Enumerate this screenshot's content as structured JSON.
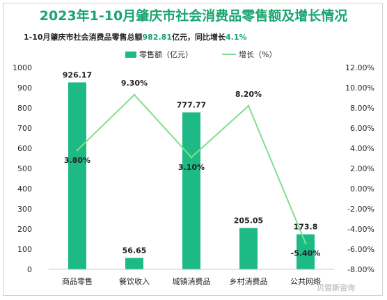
{
  "header": {
    "title": "2023年1-10月肇庆市社会消费品零售额及增长情况",
    "subtitle_prefix": "1-10月肇庆市社会消费品零售总额",
    "subtitle_total": "982.81",
    "subtitle_mid": "亿元，同比增长",
    "subtitle_growth": "4.1%"
  },
  "legend": {
    "bar_label": "零售额（亿元）",
    "line_label": "增长（%）"
  },
  "watermark": "贝哲斯咨询",
  "colors": {
    "title": "#19a56f",
    "bar": "#1dba85",
    "line": "#7de08d",
    "accent": "#19a56f"
  },
  "chart_data": {
    "type": "bar",
    "title": "2023年1-10月肇庆市社会消费品零售额及增长情况",
    "categories": [
      "商品零售",
      "餐饮收入",
      "城镇消费品",
      "乡村消费品",
      "公共网络"
    ],
    "series": [
      {
        "name": "零售额（亿元）",
        "type": "bar",
        "axis": "left",
        "values": [
          926.17,
          56.65,
          777.77,
          205.05,
          173.8
        ],
        "labels": [
          "926.17",
          "56.65",
          "777.77",
          "205.05",
          "173.8"
        ]
      },
      {
        "name": "增长（%）",
        "type": "line",
        "axis": "right",
        "values": [
          3.8,
          9.3,
          3.1,
          8.2,
          -5.4
        ],
        "labels": [
          "3.80%",
          "9.30%",
          "3.10%",
          "8.20%",
          "-5.40%"
        ]
      }
    ],
    "y_left": {
      "range": [
        0,
        1000
      ],
      "ticks": [
        0,
        100,
        200,
        300,
        400,
        500,
        600,
        700,
        800,
        900,
        1000
      ],
      "tick_labels": [
        "0",
        "100",
        "200",
        "300",
        "400",
        "500",
        "600",
        "700",
        "800",
        "900",
        "1000"
      ]
    },
    "y_right": {
      "range": [
        -8,
        12
      ],
      "ticks": [
        -8,
        -6,
        -4,
        -2,
        0,
        2,
        4,
        6,
        8,
        10,
        12
      ],
      "tick_labels": [
        "-8.00%",
        "-6.00%",
        "-4.00%",
        "-2.00%",
        "0.00%",
        "2.00%",
        "4.00%",
        "6.00%",
        "8.00%",
        "10.00%",
        "12.00%"
      ]
    },
    "grid": false,
    "legend_position": "top-center"
  }
}
